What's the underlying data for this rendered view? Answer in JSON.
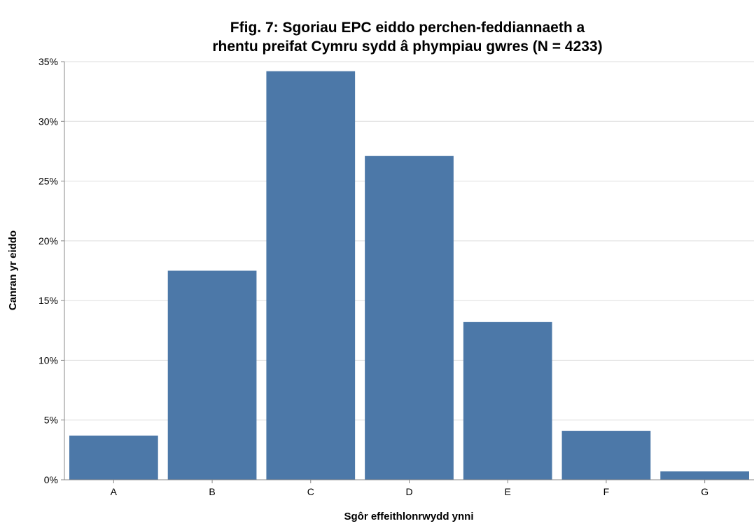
{
  "chart_data": {
    "type": "bar",
    "title": [
      "Ffig. 7: Sgoriau EPC eiddo perchen-feddiannaeth a",
      "rhentu preifat Cymru sydd â phympiau gwres (N = 4233)"
    ],
    "xlabel": "Sgôr effeithlonrwydd ynni",
    "ylabel": "Canran yr eiddo",
    "categories": [
      "A",
      "B",
      "C",
      "D",
      "E",
      "F",
      "G"
    ],
    "values": [
      3.7,
      17.5,
      34.2,
      27.1,
      13.2,
      4.1,
      0.7
    ],
    "ylim": [
      0,
      35
    ],
    "y_ticks": [
      0,
      5,
      10,
      15,
      20,
      25,
      30,
      35
    ],
    "y_tick_labels": [
      "0%",
      "5%",
      "10%",
      "15%",
      "20%",
      "25%",
      "30%",
      "35%"
    ],
    "grid": true,
    "bar_color": "#4c78a8"
  }
}
